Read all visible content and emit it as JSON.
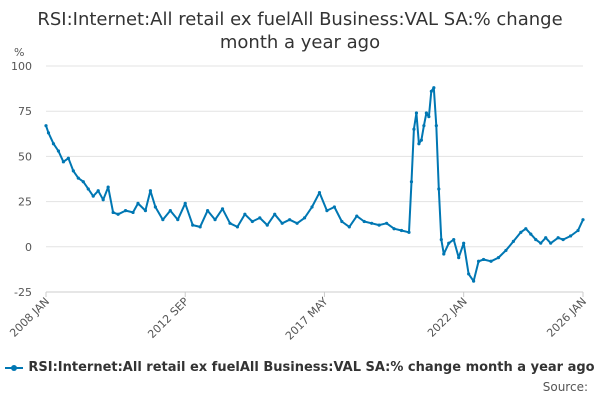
{
  "chart_data": {
    "type": "line",
    "title": "RSI:Internet:All retail ex fuelAll Business:VAL SA:% change month a year ago",
    "ylabel": "%",
    "ylim": [
      -25,
      100
    ],
    "y_ticks": [
      "100",
      "75",
      "50",
      "25",
      "0",
      "-25"
    ],
    "x_tick_labels": [
      "2008 JAN",
      "2012 SEP",
      "2017 MAY",
      "2022 JAN",
      "2026 JAN"
    ],
    "grid": "horizontal",
    "legend_position": "bottom",
    "series": [
      {
        "name": "RSI:Internet:All retail ex fuelAll Business:VAL SA:% change month a year ago",
        "color": "#0077b3",
        "points": [
          [
            "2008-01",
            67
          ],
          [
            "2008-02",
            63
          ],
          [
            "2008-04",
            57
          ],
          [
            "2008-06",
            53
          ],
          [
            "2008-08",
            47
          ],
          [
            "2008-10",
            49
          ],
          [
            "2008-12",
            42
          ],
          [
            "2009-02",
            38
          ],
          [
            "2009-04",
            36
          ],
          [
            "2009-06",
            32
          ],
          [
            "2009-08",
            28
          ],
          [
            "2009-10",
            31
          ],
          [
            "2009-12",
            26
          ],
          [
            "2010-02",
            33
          ],
          [
            "2010-04",
            19
          ],
          [
            "2010-06",
            18
          ],
          [
            "2010-09",
            20
          ],
          [
            "2010-12",
            19
          ],
          [
            "2011-02",
            24
          ],
          [
            "2011-05",
            20
          ],
          [
            "2011-07",
            31
          ],
          [
            "2011-09",
            22
          ],
          [
            "2011-12",
            15
          ],
          [
            "2012-03",
            20
          ],
          [
            "2012-06",
            15
          ],
          [
            "2012-09",
            24
          ],
          [
            "2012-12",
            12
          ],
          [
            "2013-03",
            11
          ],
          [
            "2013-06",
            20
          ],
          [
            "2013-09",
            15
          ],
          [
            "2013-12",
            21
          ],
          [
            "2014-03",
            13
          ],
          [
            "2014-06",
            11
          ],
          [
            "2014-09",
            18
          ],
          [
            "2014-12",
            14
          ],
          [
            "2015-03",
            16
          ],
          [
            "2015-06",
            12
          ],
          [
            "2015-09",
            18
          ],
          [
            "2015-12",
            13
          ],
          [
            "2016-03",
            15
          ],
          [
            "2016-06",
            13
          ],
          [
            "2016-09",
            16
          ],
          [
            "2016-12",
            22
          ],
          [
            "2017-03",
            30
          ],
          [
            "2017-06",
            20
          ],
          [
            "2017-09",
            22
          ],
          [
            "2017-12",
            14
          ],
          [
            "2018-03",
            11
          ],
          [
            "2018-06",
            17
          ],
          [
            "2018-09",
            14
          ],
          [
            "2018-12",
            13
          ],
          [
            "2019-03",
            12
          ],
          [
            "2019-06",
            13
          ],
          [
            "2019-09",
            10
          ],
          [
            "2019-12",
            9
          ],
          [
            "2020-03",
            8
          ],
          [
            "2020-04",
            36
          ],
          [
            "2020-05",
            65
          ],
          [
            "2020-06",
            74
          ],
          [
            "2020-07",
            57
          ],
          [
            "2020-08",
            59
          ],
          [
            "2020-09",
            67
          ],
          [
            "2020-10",
            74
          ],
          [
            "2020-11",
            72
          ],
          [
            "2020-12",
            86
          ],
          [
            "2021-01",
            88
          ],
          [
            "2021-02",
            67
          ],
          [
            "2021-03",
            32
          ],
          [
            "2021-04",
            4
          ],
          [
            "2021-05",
            -4
          ],
          [
            "2021-07",
            2
          ],
          [
            "2021-09",
            4
          ],
          [
            "2021-11",
            -6
          ],
          [
            "2022-01",
            2
          ],
          [
            "2022-03",
            -15
          ],
          [
            "2022-05",
            -19
          ],
          [
            "2022-07",
            -8
          ],
          [
            "2022-09",
            -7
          ],
          [
            "2022-12",
            -8
          ],
          [
            "2023-03",
            -6
          ],
          [
            "2023-06",
            -2
          ],
          [
            "2023-09",
            3
          ],
          [
            "2023-12",
            8
          ],
          [
            "2024-02",
            10
          ],
          [
            "2024-04",
            7
          ],
          [
            "2024-06",
            4
          ],
          [
            "2024-08",
            2
          ],
          [
            "2024-10",
            5
          ],
          [
            "2024-12",
            2
          ],
          [
            "2025-03",
            5
          ],
          [
            "2025-05",
            4
          ],
          [
            "2025-08",
            6
          ],
          [
            "2025-11",
            9
          ],
          [
            "2026-01",
            15
          ]
        ]
      }
    ]
  },
  "footer": {
    "source_label": "Source:"
  }
}
